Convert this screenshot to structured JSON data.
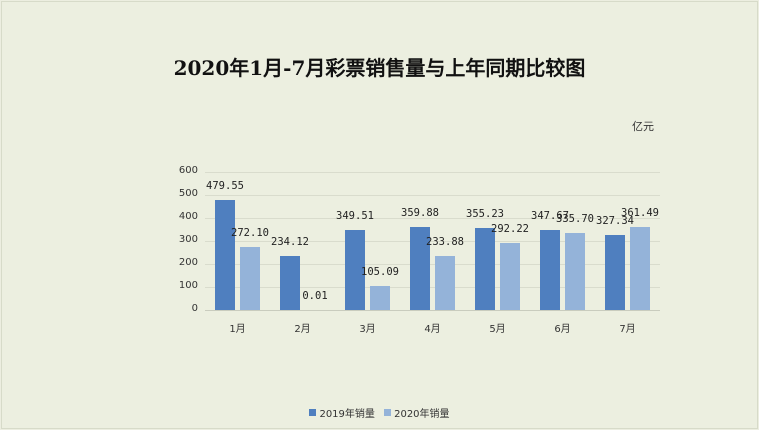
{
  "chart_data": {
    "type": "bar",
    "title": "2020年1月-7月彩票销售量与上年同期比较图",
    "unit_label": "亿元",
    "xlabel": "",
    "ylabel": "",
    "ylim": [
      0,
      600
    ],
    "yticks": [
      0,
      100,
      200,
      300,
      400,
      500,
      600
    ],
    "grid": true,
    "legend_position": "bottom",
    "categories": [
      "1月",
      "2月",
      "3月",
      "4月",
      "5月",
      "6月",
      "7月"
    ],
    "series": [
      {
        "name": "2019年销量",
        "color": "#4f7fbf",
        "values": [
          479.55,
          234.12,
          349.51,
          359.88,
          355.23,
          347.67,
          327.34
        ],
        "labels": [
          "479.55",
          "234.12",
          "349.51",
          "359.88",
          "355.23",
          "347.67",
          "327.34"
        ]
      },
      {
        "name": "2020年销量",
        "color": "#94b3d9",
        "values": [
          272.1,
          0.01,
          105.09,
          233.88,
          292.22,
          335.7,
          361.49
        ],
        "labels": [
          "272.10",
          "0.01",
          "105.09",
          "233.88",
          "292.22",
          "335.70",
          "361.49"
        ]
      }
    ]
  },
  "legend": {
    "items": [
      {
        "label": "2019年销量",
        "color": "#4f7fbf"
      },
      {
        "label": "2020年销量",
        "color": "#94b3d9"
      }
    ]
  }
}
